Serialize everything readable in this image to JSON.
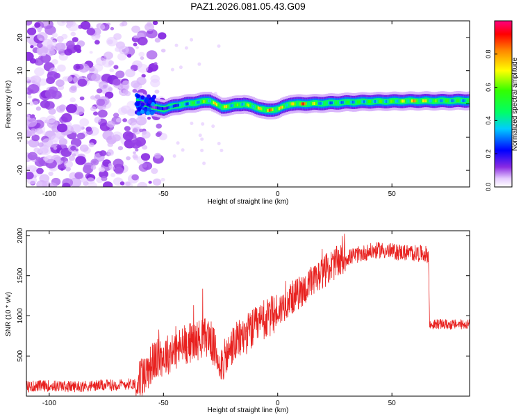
{
  "title": "PAZ1.2026.081.05.43.G09",
  "chart_data": [
    {
      "type": "heatmap",
      "xlabel": "Height of straight line (km)",
      "ylabel": "Frequency (Hz)",
      "xlim": [
        -110,
        84
      ],
      "ylim": [
        -25,
        25
      ],
      "xticks": [
        -100,
        -50,
        0,
        50
      ],
      "yticks": [
        -20,
        -10,
        0,
        10,
        20
      ],
      "colorbar": {
        "label": "Normalized spectral amplitude",
        "range": [
          0,
          1
        ],
        "ticks": [
          0.0,
          0.2,
          0.4,
          0.6,
          0.8
        ]
      },
      "description_series": {
        "name": "spectral ridge center (Hz)",
        "x": [
          -60,
          -55,
          -50,
          -45,
          -40,
          -35,
          -30,
          -25,
          -20,
          -15,
          -10,
          -5,
          0,
          5,
          10,
          20,
          30,
          40,
          50,
          60,
          70,
          84
        ],
        "values": [
          0.5,
          -1,
          -1.5,
          -0.5,
          0,
          0.5,
          1,
          -1,
          -0.5,
          0,
          -1,
          -2,
          -1.5,
          0,
          0,
          0.2,
          0.5,
          0.7,
          0.8,
          0.9,
          0.9,
          1.0
        ],
        "peak_amplitude": [
          0.25,
          0.2,
          0.3,
          0.35,
          0.5,
          0.6,
          0.7,
          0.85,
          0.6,
          0.65,
          0.7,
          0.9,
          0.8,
          0.7,
          0.95,
          0.5,
          0.55,
          0.6,
          0.62,
          0.85,
          0.6,
          0.55
        ]
      }
    },
    {
      "type": "line",
      "xlabel": "Height of straight line (km)",
      "ylabel": "SNR (10 * v/v)",
      "xlim": [
        -110,
        84
      ],
      "ylim": [
        0,
        2060
      ],
      "xticks": [
        -100,
        -50,
        0,
        50
      ],
      "yticks": [
        500,
        1000,
        1500,
        2000
      ],
      "color": "#e8211f",
      "series": [
        {
          "name": "SNR trend",
          "x": [
            -110,
            -100,
            -90,
            -80,
            -70,
            -62,
            -58,
            -55,
            -50,
            -45,
            -40,
            -35,
            -30,
            -28,
            -25,
            -22,
            -20,
            -15,
            -10,
            -5,
            0,
            5,
            10,
            15,
            20,
            25,
            30,
            35,
            40,
            45,
            50,
            55,
            60,
            65,
            66,
            66.5,
            70,
            75,
            80,
            84
          ],
          "values": [
            120,
            130,
            120,
            130,
            140,
            160,
            280,
            420,
            500,
            560,
            650,
            700,
            750,
            600,
            400,
            500,
            620,
            750,
            850,
            950,
            1050,
            1200,
            1300,
            1400,
            1550,
            1650,
            1720,
            1760,
            1800,
            1820,
            1800,
            1790,
            1780,
            1770,
            1750,
            880,
            900,
            890,
            895,
            900
          ]
        }
      ]
    }
  ]
}
